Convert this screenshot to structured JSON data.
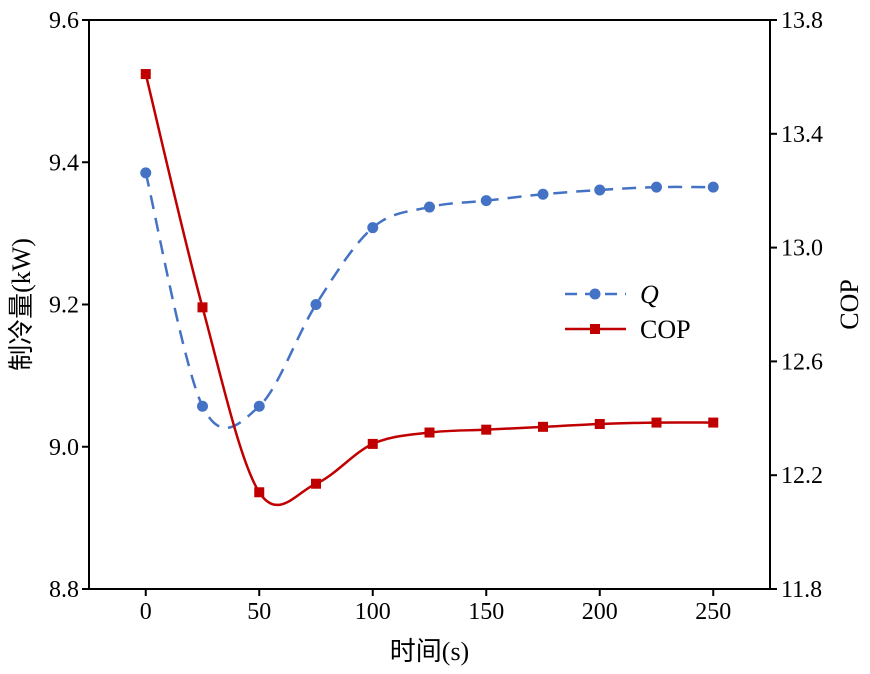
{
  "chart_data": {
    "type": "line",
    "xlabel": "时间(s)",
    "ylabel_left": "制冷量(kW)",
    "ylabel_right": "COP",
    "xlim": [
      -25,
      275
    ],
    "ylim_left": [
      8.8,
      9.6
    ],
    "ylim_right": [
      11.8,
      13.8
    ],
    "xticks": [
      0,
      50,
      100,
      150,
      200,
      250
    ],
    "yticks_left": [
      "8.8",
      "9.0",
      "9.2",
      "9.4",
      "9.6"
    ],
    "yticks_right": [
      "11.8",
      "12.2",
      "12.6",
      "13.0",
      "13.4",
      "13.8"
    ],
    "grid": false,
    "legend": "right-middle",
    "x": [
      0,
      25,
      50,
      75,
      100,
      125,
      150,
      175,
      200,
      225,
      250
    ],
    "series": [
      {
        "name": "Q",
        "axis": "left",
        "color": "#4472C4",
        "line_style": "dashed",
        "marker": "circle",
        "values": [
          9.385,
          9.057,
          9.057,
          9.2,
          9.308,
          9.337,
          9.346,
          9.355,
          9.361,
          9.365,
          9.365
        ]
      },
      {
        "name": "COP",
        "axis": "right",
        "color": "#C00000",
        "line_style": "solid",
        "marker": "square",
        "values": [
          13.61,
          12.79,
          12.14,
          12.17,
          12.31,
          12.35,
          12.36,
          12.37,
          12.38,
          12.385,
          12.385
        ]
      }
    ]
  }
}
